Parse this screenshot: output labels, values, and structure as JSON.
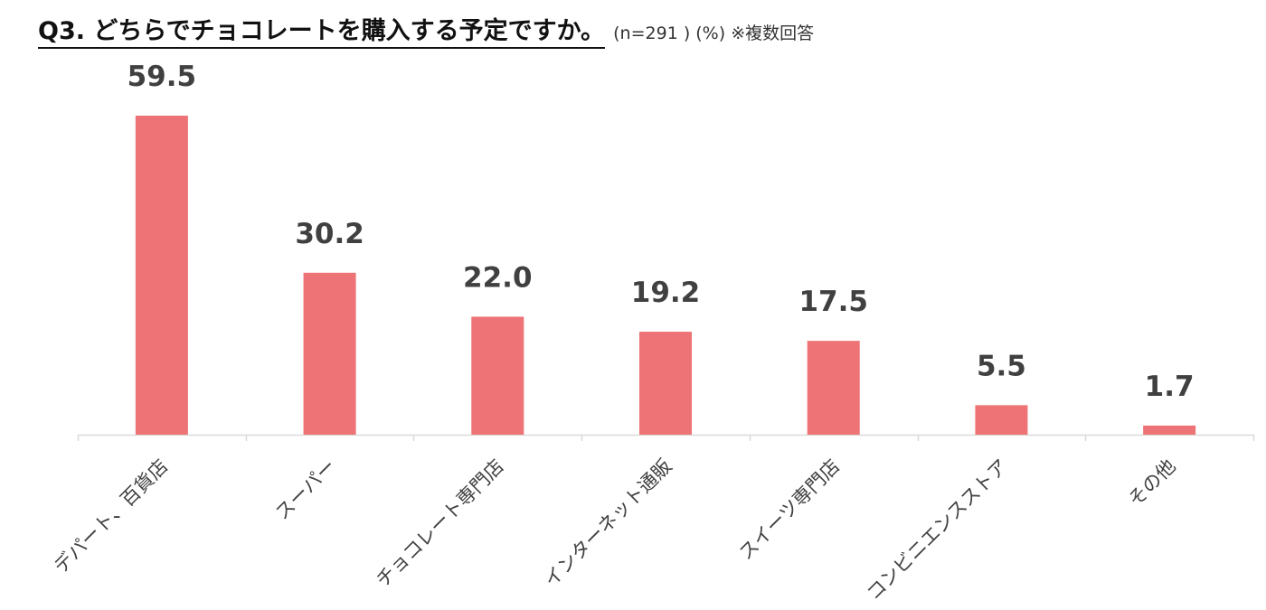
{
  "header": {
    "title": "Q3. どちらでチョコレートを購入する予定ですか。",
    "note": "(n=291 ) (%) ※複数回答"
  },
  "chart_data": {
    "type": "bar",
    "categories": [
      "デパート、百貨店",
      "スーパー",
      "チョコレート専門店",
      "インターネット通販",
      "スイーツ専門店",
      "コンビニエンスストア",
      "その他"
    ],
    "values": [
      59.5,
      30.2,
      22.0,
      19.2,
      17.5,
      5.5,
      1.7
    ],
    "value_labels": [
      "59.5",
      "30.2",
      "22.0",
      "19.2",
      "17.5",
      "5.5",
      "1.7"
    ],
    "ylim": [
      0,
      60
    ],
    "bar_color": "#ee7376",
    "axis_color": "#d9d9d9",
    "grid": false,
    "legend": "none"
  }
}
